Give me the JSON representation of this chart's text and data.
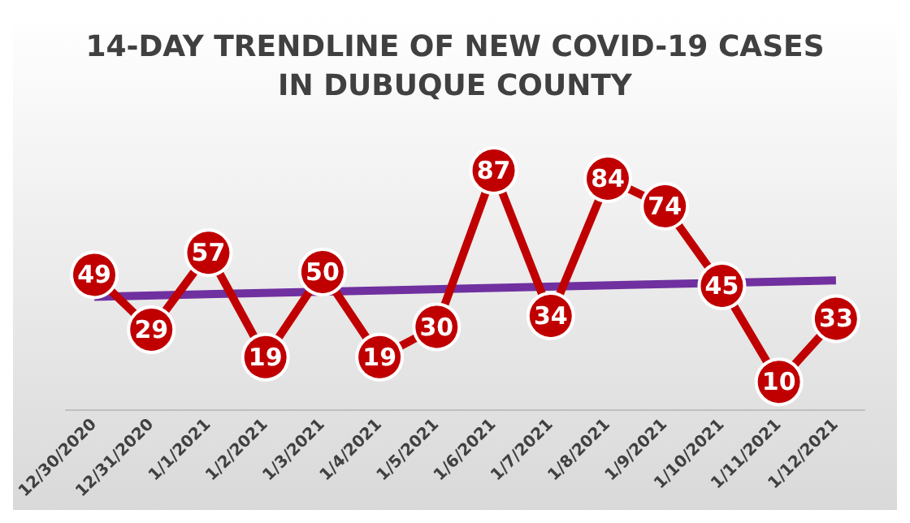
{
  "chart_data": {
    "type": "line",
    "title": "14-DAY TRENDLINE OF NEW COVID-19 CASES\nIN DUBUQUE COUNTY",
    "categories": [
      "12/30/2020",
      "12/31/2020",
      "1/1/2021",
      "1/2/2021",
      "1/3/2021",
      "1/4/2021",
      "1/5/2021",
      "1/6/2021",
      "1/7/2021",
      "1/8/2021",
      "1/9/2021",
      "1/10/2021",
      "1/11/2021",
      "1/12/2021"
    ],
    "series": [
      {
        "color": "#c00000",
        "values": [
          49,
          29,
          57,
          19,
          50,
          19,
          30,
          87,
          34,
          84,
          74,
          45,
          10,
          33
        ],
        "data_labels": true,
        "marker": "circle"
      },
      {
        "type": "line",
        "color": "#7030a0",
        "x": [
          "12/30/2020",
          "1/12/2021"
        ],
        "values": [
          41,
          47
        ],
        "marker": "none"
      }
    ],
    "tick_labels": "x",
    "grid": false
  }
}
